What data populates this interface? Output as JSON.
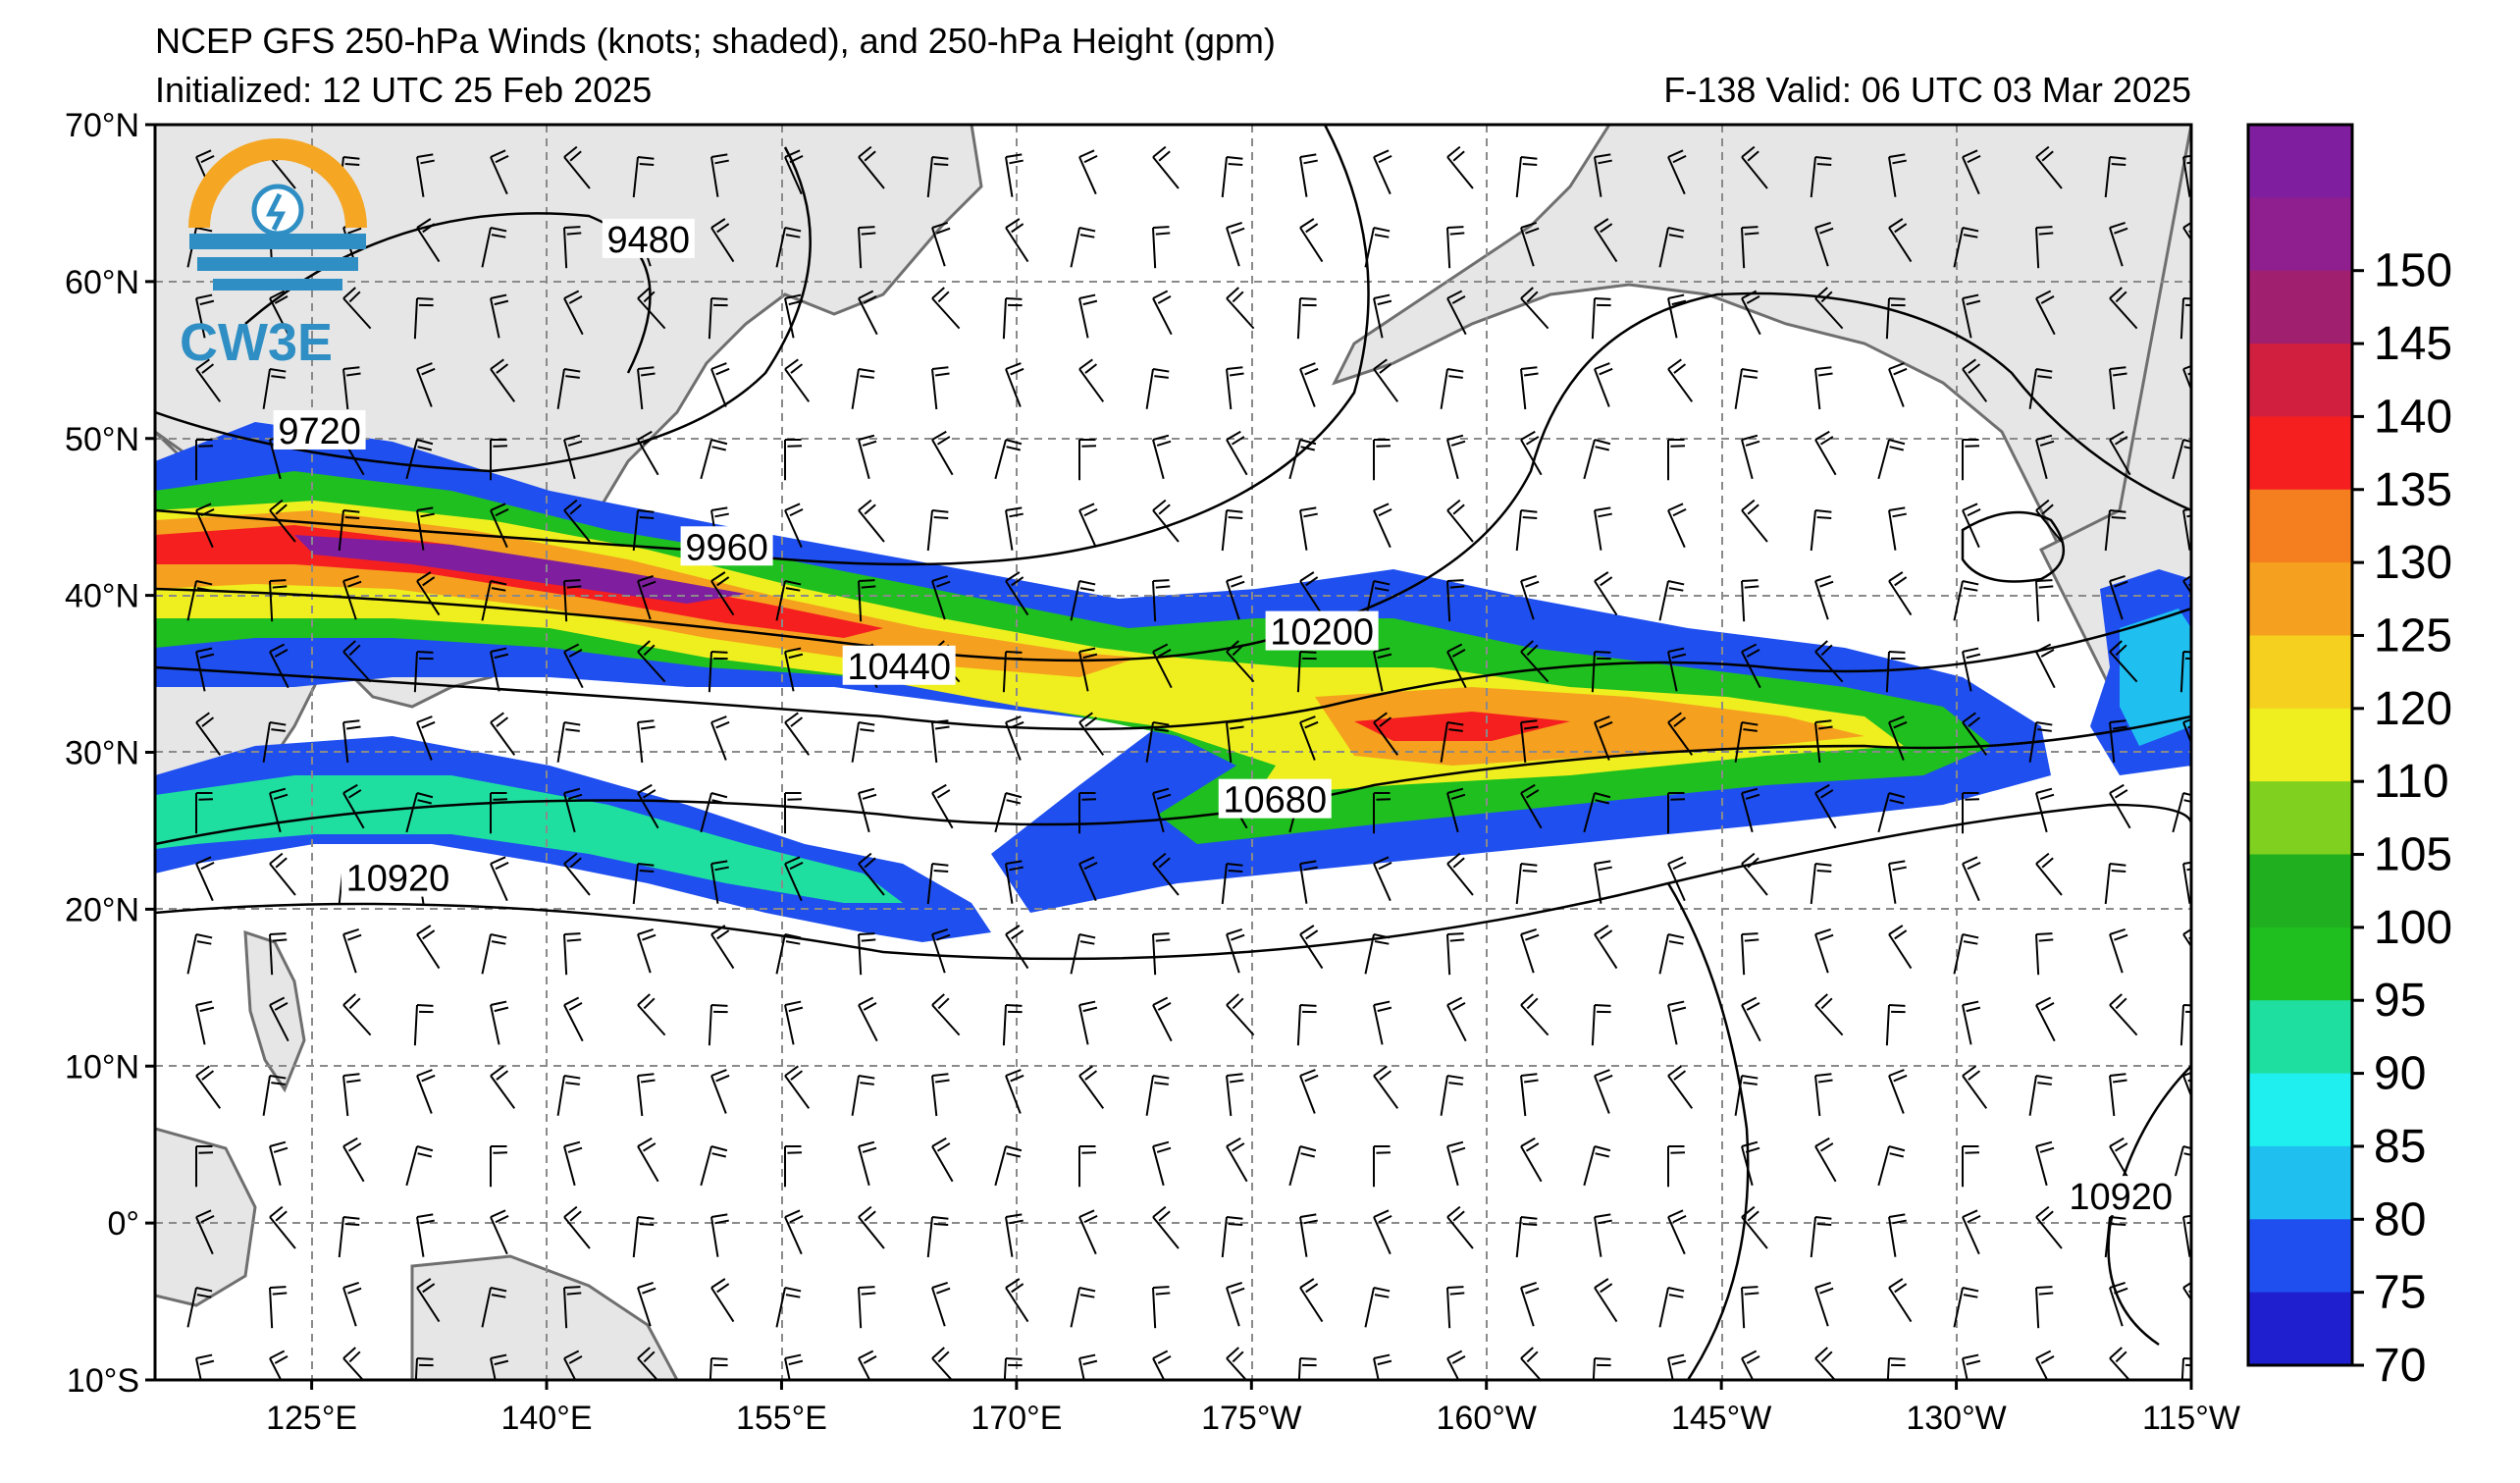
{
  "title": {
    "line1": "NCEP GFS 250-hPa Winds (knots; shaded), and 250-hPa Height (gpm)",
    "line2": "Initialized: 12 UTC 25 Feb 2025",
    "valid": "F-138  Valid: 06 UTC 03 Mar 2025"
  },
  "logo": {
    "text": "CW3E",
    "colors": {
      "orange": "#F5A623",
      "blue": "#2F8FC4"
    }
  },
  "axes": {
    "lat_labels": [
      "70°N",
      "60°N",
      "50°N",
      "40°N",
      "30°N",
      "20°N",
      "10°N",
      "0°",
      "10°S"
    ],
    "lat_values": [
      70,
      60,
      50,
      40,
      30,
      20,
      10,
      0,
      -10
    ],
    "lon_labels": [
      "125°E",
      "140°E",
      "155°E",
      "170°E",
      "175°W",
      "160°W",
      "145°W",
      "130°W",
      "115°W"
    ],
    "lon_values": [
      125,
      140,
      155,
      170,
      185,
      200,
      215,
      230,
      245
    ],
    "lon_range": [
      115,
      245
    ],
    "lat_range": [
      -10,
      70
    ]
  },
  "colorbar": {
    "levels": [
      "70",
      "75",
      "80",
      "85",
      "90",
      "95",
      "100",
      "105",
      "110",
      "120",
      "125",
      "130",
      "135",
      "140",
      "145",
      "150"
    ],
    "colors": [
      "#1F1FCF",
      "#1F4FEF",
      "#1FBFF0",
      "#1FEFEF",
      "#1FDFA0",
      "#1FBF1F",
      "#1FAF1F",
      "#7FD01F",
      "#EFEF1F",
      "#F5D01F",
      "#F5A01F",
      "#F57F1F",
      "#F51F1F",
      "#D01F3F",
      "#A01F6F",
      "#8F1F8F",
      "#7F1F9F"
    ],
    "units": "knots"
  },
  "contour_labels": [
    {
      "text": "9480",
      "lon": 146.5,
      "lat": 62.5
    },
    {
      "text": "9720",
      "lon": 125.5,
      "lat": 50.3
    },
    {
      "text": "9960",
      "lon": 151.5,
      "lat": 42.9
    },
    {
      "text": "10200",
      "lon": 189.5,
      "lat": 37.5
    },
    {
      "text": "10440",
      "lon": 162.5,
      "lat": 35.3
    },
    {
      "text": "10680",
      "lon": 186.5,
      "lat": 26.8
    },
    {
      "text": "10920",
      "lon": 130.5,
      "lat": 21.8
    },
    {
      "text": "10920",
      "lon": 240.5,
      "lat": 1.5
    }
  ],
  "colors": {
    "land": "#E6E6E6",
    "coast": "#6F6F6F",
    "grid": "#8A8A8A",
    "contour": "#000000"
  }
}
